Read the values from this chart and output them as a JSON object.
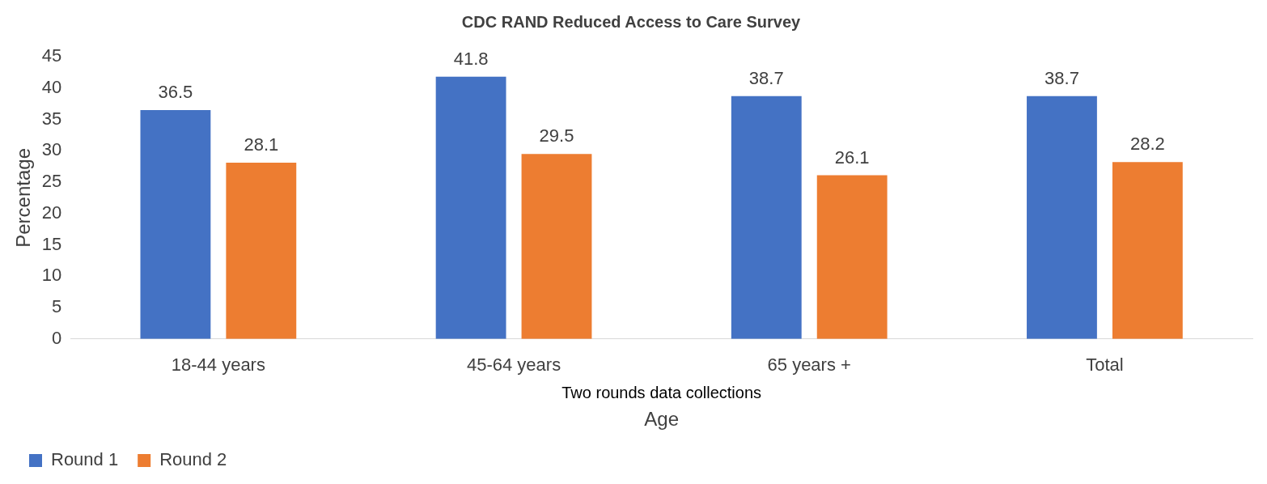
{
  "chart_data": {
    "type": "bar",
    "title": "CDC RAND Reduced Access to Care Survey",
    "xlabel": "Age",
    "ylabel": "Percentage",
    "annotations": [
      "Two rounds data collections"
    ],
    "categories": [
      "18-44 years",
      "45-64 years",
      "65 years +",
      "Total"
    ],
    "series": [
      {
        "name": "Round 1",
        "color": "#4472c4",
        "values": [
          36.5,
          41.8,
          38.7,
          38.7
        ]
      },
      {
        "name": "Round 2",
        "color": "#ed7d31",
        "values": [
          28.1,
          29.5,
          26.1,
          28.2
        ]
      }
    ],
    "ylim": [
      0,
      45
    ],
    "yticks": [
      0,
      5,
      10,
      15,
      20,
      25,
      30,
      35,
      40,
      45
    ],
    "grid": false,
    "legend": "bottom",
    "data_labels": true
  }
}
